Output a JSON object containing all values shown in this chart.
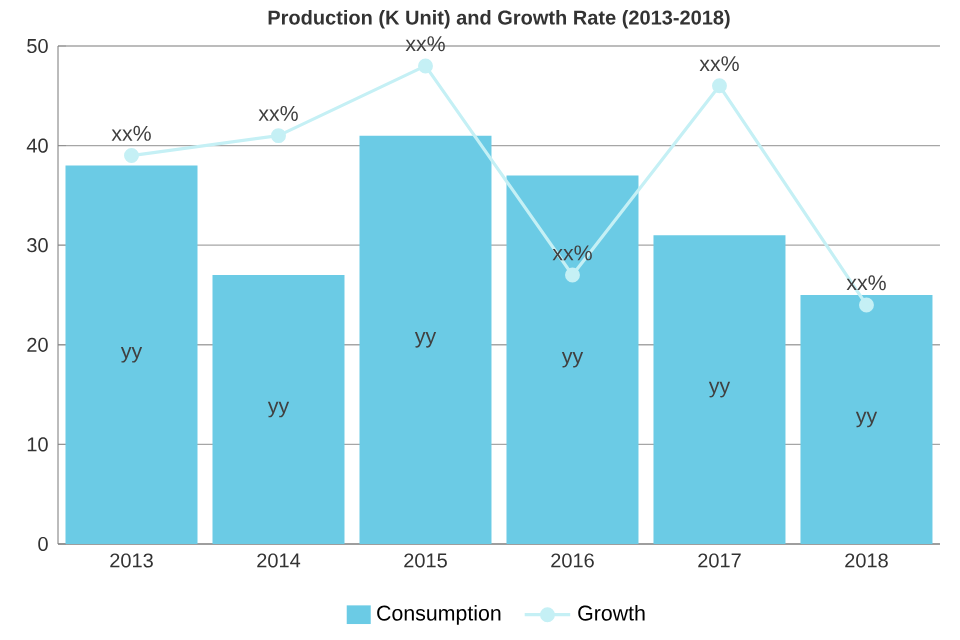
{
  "chart_data": {
    "type": "bar",
    "title": "Production (K Unit) and Growth Rate (2013-2018)",
    "categories": [
      "2013",
      "2014",
      "2015",
      "2016",
      "2017",
      "2018"
    ],
    "series": [
      {
        "name": "Consumption",
        "color": "#6bcbe5",
        "values": [
          38,
          27,
          41,
          37,
          31,
          25
        ],
        "value_labels": [
          "yy",
          "yy",
          "yy",
          "yy",
          "yy",
          "yy"
        ]
      },
      {
        "name": "Growth",
        "type": "line",
        "color": "#c5f0f5",
        "marker": "circle",
        "values": [
          39,
          41,
          48,
          27,
          46,
          24
        ],
        "value_labels": [
          "xx%",
          "xx%",
          "xx%",
          "xx%",
          "xx%",
          "xx%"
        ]
      }
    ],
    "ylim": [
      0,
      50
    ],
    "yticks": [
      0,
      10,
      20,
      30,
      40,
      50
    ],
    "grid": "y",
    "legend": "bottom"
  }
}
